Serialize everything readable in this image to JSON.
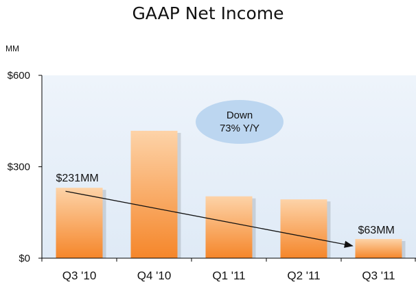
{
  "chart_data": {
    "type": "bar",
    "title": "GAAP Net Income",
    "unit_label": "MM",
    "categories": [
      "Q3 '10",
      "Q4 '10",
      "Q1 '11",
      "Q2 '11",
      "Q3 '11"
    ],
    "values": [
      231,
      418,
      203,
      193,
      63
    ],
    "ylim": [
      0,
      600
    ],
    "yticks": [
      0,
      300,
      600
    ],
    "ytick_labels": [
      "$0",
      "$300",
      "$600"
    ],
    "xlabel": "",
    "ylabel": "",
    "grid": false,
    "annotations": [
      {
        "text": "$231MM",
        "category": "Q3 '10"
      },
      {
        "text": "$63MM",
        "category": "Q3 '11"
      }
    ],
    "callout": {
      "line1": "Down",
      "line2": "73% Y/Y"
    },
    "trend_arrow": {
      "from": "Q3 '10",
      "to": "Q3 '11"
    },
    "colors": {
      "bar_light": "#fdd3a8",
      "bar_dark": "#f5862a",
      "plot_bg": "#dfeaf6",
      "callout_fill": "#b7d3ee",
      "axis": "#000000"
    }
  }
}
